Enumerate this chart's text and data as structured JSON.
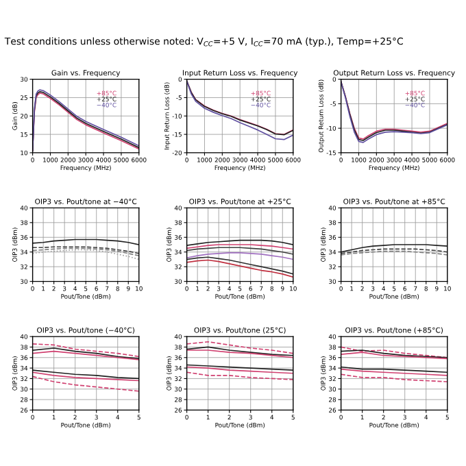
{
  "chart_data": [
    {
      "type": "line",
      "title": "Gain vs. Frequency",
      "xlabel": "Frequency (MHz)",
      "ylabel": "Gain (dB)",
      "annotations": [
        "Test conditions unless otherwise noted: V$_{CC}$=+5 V, I$_{CC}$=70 mA (typ.), Temp=+25°C"
      ],
      "x": [
        0,
        100,
        200,
        300,
        400,
        600,
        1000,
        1500,
        2000,
        2500,
        3000,
        4000,
        5000,
        6000
      ],
      "xlim": [
        0,
        6000
      ],
      "xticks": [
        0,
        1000,
        2000,
        3000,
        4000,
        5000,
        6000
      ],
      "ylim": [
        10,
        30
      ],
      "yticks": [
        10,
        15,
        20,
        25,
        30
      ],
      "grid": true,
      "series": [
        {
          "name": "+85°C",
          "color": "#d04070",
          "values": [
            10.5,
            21,
            25,
            25.8,
            26.2,
            26,
            24.8,
            23,
            21,
            19,
            17.6,
            15.4,
            13.3,
            11
          ]
        },
        {
          "name": "+25°C",
          "color": "#202020",
          "values": [
            10.5,
            21.5,
            25.5,
            26.3,
            26.6,
            26.4,
            25.2,
            23.4,
            21.4,
            19.4,
            18,
            15.8,
            13.7,
            11.4
          ]
        },
        {
          "name": "−40°C",
          "color": "#6050a0",
          "values": [
            10.5,
            22,
            26,
            26.8,
            27.1,
            26.9,
            25.7,
            23.9,
            21.9,
            19.9,
            18.5,
            16.3,
            14.2,
            11.9
          ]
        }
      ]
    },
    {
      "type": "line",
      "title": "Input Return Loss vs. Frequency",
      "xlabel": "Frequency (MHz)",
      "ylabel": "Input Return Loss (dB)",
      "x": [
        0,
        250,
        500,
        1000,
        1500,
        2000,
        2500,
        3000,
        3500,
        4000,
        4500,
        5000,
        5500,
        6000
      ],
      "xlim": [
        0,
        6000
      ],
      "xticks": [
        0,
        1000,
        2000,
        3000,
        4000,
        5000,
        6000
      ],
      "ylim": [
        -20,
        0
      ],
      "yticks": [
        -20,
        -15,
        -10,
        -5,
        0
      ],
      "grid": true,
      "series": [
        {
          "name": "+85°C",
          "color": "#d04070",
          "values": [
            -0.5,
            -3.5,
            -5.5,
            -7.3,
            -8.4,
            -9.3,
            -10,
            -11,
            -11.8,
            -12.6,
            -13.6,
            -14.8,
            -15,
            -13.8
          ]
        },
        {
          "name": "+25°C",
          "color": "#202020",
          "values": [
            -0.5,
            -3.6,
            -5.6,
            -7.4,
            -8.5,
            -9.4,
            -10.1,
            -11.1,
            -11.9,
            -12.7,
            -13.7,
            -14.9,
            -15.1,
            -13.9
          ]
        },
        {
          "name": "−40°C",
          "color": "#6050a0",
          "values": [
            -0.6,
            -4,
            -6,
            -7.9,
            -9,
            -9.9,
            -10.7,
            -11.8,
            -12.8,
            -13.8,
            -15,
            -16.2,
            -16.4,
            -15.2
          ]
        }
      ]
    },
    {
      "type": "line",
      "title": "Output Return Loss vs. Frequency",
      "xlabel": "Frequency (MHz)",
      "ylabel": "Output Return Loss (dB)",
      "x": [
        0,
        250,
        500,
        750,
        1000,
        1250,
        1500,
        2000,
        2500,
        3000,
        3500,
        4000,
        4500,
        5000,
        5500,
        6000
      ],
      "xlim": [
        0,
        6000
      ],
      "xticks": [
        0,
        1000,
        2000,
        3000,
        4000,
        5000,
        6000
      ],
      "ylim": [
        -15,
        0
      ],
      "yticks": [
        -15,
        -10,
        -5,
        0
      ],
      "grid": true,
      "series": [
        {
          "name": "+85°C",
          "color": "#d04070",
          "values": [
            -0.5,
            -3.5,
            -7,
            -10,
            -12,
            -12.2,
            -11.6,
            -10.6,
            -10.2,
            -10.2,
            -10.4,
            -10.6,
            -10.8,
            -10.6,
            -9.8,
            -9
          ]
        },
        {
          "name": "+25°C",
          "color": "#202020",
          "values": [
            -0.5,
            -3.6,
            -7.2,
            -10.3,
            -12.3,
            -12.5,
            -11.9,
            -10.9,
            -10.4,
            -10.4,
            -10.6,
            -10.8,
            -11,
            -10.8,
            -10,
            -9.2
          ]
        },
        {
          "name": "−40°C",
          "color": "#6050a0",
          "values": [
            -0.6,
            -3.8,
            -7.6,
            -10.8,
            -12.7,
            -12.9,
            -12.3,
            -11.3,
            -10.8,
            -10.7,
            -10.8,
            -10.9,
            -11.1,
            -10.9,
            -10.1,
            -9.3
          ]
        }
      ]
    },
    {
      "type": "line",
      "title": "OIP3 vs. Pout/tone at −40°C",
      "xlabel": "Pout/Tone (dBm)",
      "ylabel": "OIP3 (dBm)",
      "x": [
        0,
        1,
        2,
        3,
        4,
        5,
        6,
        7,
        8,
        9,
        10
      ],
      "xlim": [
        0,
        10
      ],
      "xticks": [
        0,
        1,
        2,
        3,
        4,
        5,
        6,
        7,
        8,
        9,
        10
      ],
      "ylim": [
        30,
        40
      ],
      "yticks": [
        30,
        32,
        34,
        36,
        38,
        40
      ],
      "grid": true,
      "series": [
        {
          "color": "#202020",
          "line_style": "solid",
          "values": [
            35.2,
            35.3,
            35.5,
            35.6,
            35.7,
            35.7,
            35.7,
            35.6,
            35.5,
            35.3,
            35
          ]
        },
        {
          "color": "#404040",
          "line_style": "dashed",
          "values": [
            34.6,
            34.6,
            34.7,
            34.7,
            34.7,
            34.7,
            34.6,
            34.5,
            34.3,
            34.1,
            33.8
          ]
        },
        {
          "color": "#808080",
          "line_style": "dashed",
          "values": [
            34.2,
            34.3,
            34.4,
            34.5,
            34.5,
            34.5,
            34.4,
            34.3,
            34.1,
            33.8,
            33.5
          ]
        },
        {
          "color": "#a0a0a0",
          "line_style": "dotted",
          "values": [
            33.8,
            34,
            34.1,
            34.2,
            34.3,
            34.3,
            34.2,
            34,
            33.7,
            33.4,
            33
          ]
        }
      ]
    },
    {
      "type": "line",
      "title": "OIP3 vs. Pout/tone at +25°C",
      "xlabel": "Pout/Tone (dBm)",
      "ylabel": "OIP3 (dBm)",
      "x": [
        0,
        1,
        2,
        3,
        4,
        5,
        6,
        7,
        8,
        9,
        10
      ],
      "xlim": [
        0,
        10
      ],
      "xticks": [
        0,
        1,
        2,
        3,
        4,
        5,
        6,
        7,
        8,
        9,
        10
      ],
      "ylim": [
        30,
        40
      ],
      "yticks": [
        30,
        32,
        34,
        36,
        38,
        40
      ],
      "grid": true,
      "series": [
        {
          "color": "#202020",
          "line_style": "solid",
          "values": [
            34.9,
            35.1,
            35.3,
            35.4,
            35.5,
            35.6,
            35.6,
            35.6,
            35.5,
            35.3,
            35
          ]
        },
        {
          "color": "#d04070",
          "line_style": "solid",
          "values": [
            34.5,
            34.7,
            34.9,
            35,
            35,
            35,
            35,
            34.9,
            34.8,
            34.6,
            34.4
          ]
        },
        {
          "color": "#404040",
          "line_style": "solid",
          "values": [
            34.2,
            34.4,
            34.5,
            34.6,
            34.6,
            34.6,
            34.5,
            34.4,
            34.2,
            34,
            33.7
          ]
        },
        {
          "color": "#a070c0",
          "line_style": "solid",
          "values": [
            33.2,
            33.5,
            33.7,
            33.8,
            33.9,
            33.9,
            33.8,
            33.7,
            33.5,
            33.3,
            33
          ]
        },
        {
          "color": "#c03040",
          "line_style": "solid",
          "values": [
            32.6,
            32.8,
            32.9,
            32.7,
            32.4,
            32.1,
            31.8,
            31.5,
            31.3,
            31,
            30.6
          ]
        },
        {
          "color": "#303030",
          "line_style": "solid",
          "values": [
            33,
            33.2,
            33.3,
            33.1,
            32.9,
            32.6,
            32.3,
            32,
            31.7,
            31.4,
            31
          ]
        }
      ]
    },
    {
      "type": "line",
      "title": "OIP3 vs. Pout/tone at +85°C",
      "xlabel": "Pout/Tone (dBm)",
      "ylabel": "OIP3 (dBm)",
      "x": [
        0,
        1,
        2,
        3,
        4,
        5,
        6,
        7,
        8,
        9,
        10
      ],
      "xlim": [
        0,
        10
      ],
      "xticks": [
        0,
        1,
        2,
        3,
        4,
        5,
        6,
        7,
        8,
        9,
        10
      ],
      "ylim": [
        30,
        40
      ],
      "yticks": [
        30,
        32,
        34,
        36,
        38,
        40
      ],
      "grid": true,
      "series": [
        {
          "color": "#202020",
          "line_style": "solid",
          "values": [
            34,
            34.3,
            34.6,
            34.8,
            34.9,
            35,
            35,
            35,
            35,
            34.9,
            34.8
          ]
        },
        {
          "color": "#404040",
          "line_style": "dashed",
          "values": [
            33.8,
            34,
            34.2,
            34.3,
            34.4,
            34.4,
            34.4,
            34.4,
            34.3,
            34.2,
            34
          ]
        },
        {
          "color": "#808080",
          "line_style": "dashed",
          "values": [
            33.6,
            33.8,
            33.9,
            34,
            34.1,
            34.1,
            34.1,
            34,
            33.9,
            33.8,
            33.6
          ]
        }
      ]
    },
    {
      "type": "line",
      "title": "OIP3 vs. Pout/tone (−40°C)",
      "xlabel": "Pout/Tone (dBm)",
      "ylabel": "OIP3 (dBm)",
      "x": [
        0,
        1,
        2,
        3,
        4,
        5
      ],
      "xlim": [
        0,
        5
      ],
      "xticks": [
        0,
        1,
        2,
        3,
        4,
        5
      ],
      "ylim": [
        26,
        40
      ],
      "yticks": [
        26,
        28,
        30,
        32,
        34,
        36,
        38,
        40
      ],
      "grid": true,
      "series": [
        {
          "color": "#d04070",
          "line_style": "dashed",
          "values": [
            38.6,
            38.4,
            37.6,
            37.2,
            36.8,
            36.2
          ]
        },
        {
          "color": "#202020",
          "line_style": "solid",
          "values": [
            37.4,
            37.8,
            37.2,
            36.8,
            36.2,
            35.8
          ]
        },
        {
          "color": "#d04070",
          "line_style": "solid",
          "values": [
            36.8,
            37.2,
            36.8,
            36.4,
            36,
            35.6
          ]
        },
        {
          "color": "#202020",
          "line_style": "solid",
          "values": [
            33.6,
            33.2,
            32.8,
            32.6,
            32.2,
            32
          ]
        },
        {
          "color": "#d04070",
          "line_style": "solid",
          "values": [
            33.2,
            32.6,
            32.2,
            32,
            31.8,
            31.6
          ]
        },
        {
          "color": "#d04070",
          "line_style": "dashed",
          "values": [
            32.4,
            31.4,
            30.8,
            30.4,
            30,
            29.6
          ]
        }
      ]
    },
    {
      "type": "line",
      "title": "OIP3 vs. Pout/tone (25°C)",
      "xlabel": "Pout/Tone (dBm)",
      "ylabel": "OIP3 (dBm)",
      "x": [
        0,
        1,
        2,
        3,
        4,
        5
      ],
      "xlim": [
        0,
        5
      ],
      "xticks": [
        0,
        1,
        2,
        3,
        4,
        5
      ],
      "ylim": [
        26,
        40
      ],
      "yticks": [
        26,
        28,
        30,
        32,
        34,
        36,
        38,
        40
      ],
      "grid": true,
      "series": [
        {
          "color": "#d04070",
          "line_style": "dashed",
          "values": [
            38.6,
            39,
            38.4,
            37.8,
            37.4,
            36.8
          ]
        },
        {
          "color": "#202020",
          "line_style": "solid",
          "values": [
            37.6,
            38,
            37.4,
            37,
            36.6,
            36.4
          ]
        },
        {
          "color": "#d04070",
          "line_style": "solid",
          "values": [
            37.4,
            37.4,
            37,
            36.8,
            36.4,
            36
          ]
        },
        {
          "color": "#202020",
          "line_style": "solid",
          "values": [
            34.6,
            34.4,
            34.2,
            34,
            33.8,
            33.6
          ]
        },
        {
          "color": "#d04070",
          "line_style": "solid",
          "values": [
            34.2,
            34,
            33.6,
            33.4,
            33.2,
            33
          ]
        },
        {
          "color": "#d04070",
          "line_style": "dashed",
          "values": [
            33.2,
            32.6,
            32.6,
            32.2,
            32,
            31.8
          ]
        }
      ]
    },
    {
      "type": "line",
      "title": "OIP3 vs. Pout/tone (+85°C)",
      "xlabel": "Pout/Tone (dBm)",
      "ylabel": "OIP3 (dBm)",
      "x": [
        0,
        1,
        2,
        3,
        4,
        5
      ],
      "xlim": [
        0,
        5
      ],
      "xticks": [
        0,
        1,
        2,
        3,
        4,
        5
      ],
      "ylim": [
        26,
        40
      ],
      "yticks": [
        26,
        28,
        30,
        32,
        34,
        36,
        38,
        40
      ],
      "grid": true,
      "series": [
        {
          "color": "#d04070",
          "line_style": "dashed",
          "values": [
            38,
            37.2,
            37.4,
            36.8,
            36.4,
            36
          ]
        },
        {
          "color": "#202020",
          "line_style": "solid",
          "values": [
            37.2,
            37.4,
            36.8,
            36.4,
            36.2,
            36
          ]
        },
        {
          "color": "#d04070",
          "line_style": "solid",
          "values": [
            36.6,
            37,
            36.4,
            36.2,
            36,
            35.8
          ]
        },
        {
          "color": "#202020",
          "line_style": "solid",
          "values": [
            34.2,
            33.8,
            33.8,
            33.6,
            33.4,
            33.2
          ]
        },
        {
          "color": "#d04070",
          "line_style": "solid",
          "values": [
            33.8,
            33.4,
            33.2,
            33,
            32.8,
            32.6
          ]
        },
        {
          "color": "#d04070",
          "line_style": "dashed",
          "values": [
            32.8,
            32.2,
            32.2,
            31.8,
            31.6,
            31.4
          ]
        }
      ]
    }
  ]
}
